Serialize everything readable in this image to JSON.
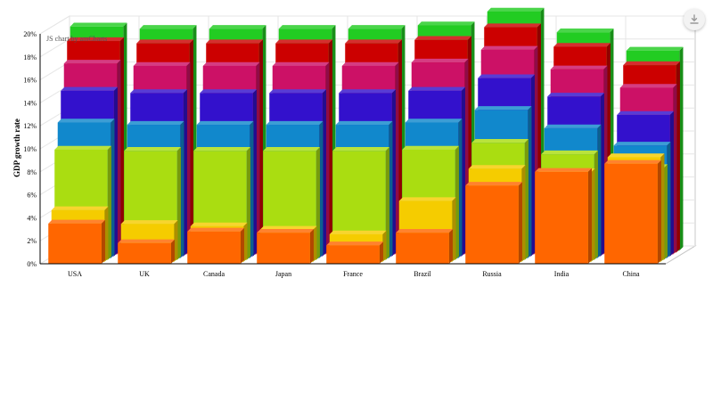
{
  "credit": "JS chart by amCharts",
  "download_icon": "download-icon",
  "chart_data": {
    "type": "bar",
    "subtype": "3d-layered-columns",
    "title": "",
    "xlabel": "",
    "ylabel": "GDP growth rate",
    "ylim": [
      0,
      20
    ],
    "y_ticks": [
      "0%",
      "2%",
      "4%",
      "6%",
      "8%",
      "10%",
      "12%",
      "14%",
      "16%",
      "18%",
      "20%"
    ],
    "grid": true,
    "legend": "none",
    "categories": [
      "USA",
      "UK",
      "Canada",
      "Japan",
      "France",
      "Brazil",
      "Russia",
      "India",
      "China"
    ],
    "series": [
      {
        "color": "#22cc22",
        "values": [
          19.5,
          19.3,
          19.3,
          19.3,
          19.3,
          19.6,
          20.8,
          19.0,
          17.4
        ]
      },
      {
        "color": "#cc0000",
        "values": [
          18.4,
          18.2,
          18.2,
          18.2,
          18.2,
          18.5,
          19.6,
          17.9,
          16.3
        ]
      },
      {
        "color": "#cc1166",
        "values": [
          16.6,
          16.4,
          16.4,
          16.4,
          16.4,
          16.7,
          17.8,
          16.1,
          14.5
        ]
      },
      {
        "color": "#3311cc",
        "values": [
          14.4,
          14.2,
          14.2,
          14.2,
          14.2,
          14.4,
          15.5,
          13.9,
          12.3
        ]
      },
      {
        "color": "#1188cc",
        "values": [
          11.8,
          11.6,
          11.6,
          11.6,
          11.6,
          11.8,
          12.9,
          11.3,
          9.8
        ]
      },
      {
        "color": "#aadd11",
        "values": [
          9.6,
          9.5,
          9.5,
          9.5,
          9.5,
          9.6,
          10.2,
          9.2,
          8.0
        ]
      },
      {
        "color": "#f5cc00",
        "values": [
          4.5,
          3.3,
          3.1,
          2.8,
          2.4,
          5.3,
          8.1,
          7.8,
          9.1
        ]
      },
      {
        "color": "#ff6600",
        "values": [
          3.5,
          1.8,
          2.8,
          2.7,
          1.6,
          2.7,
          6.8,
          8.0,
          8.7
        ]
      }
    ]
  }
}
